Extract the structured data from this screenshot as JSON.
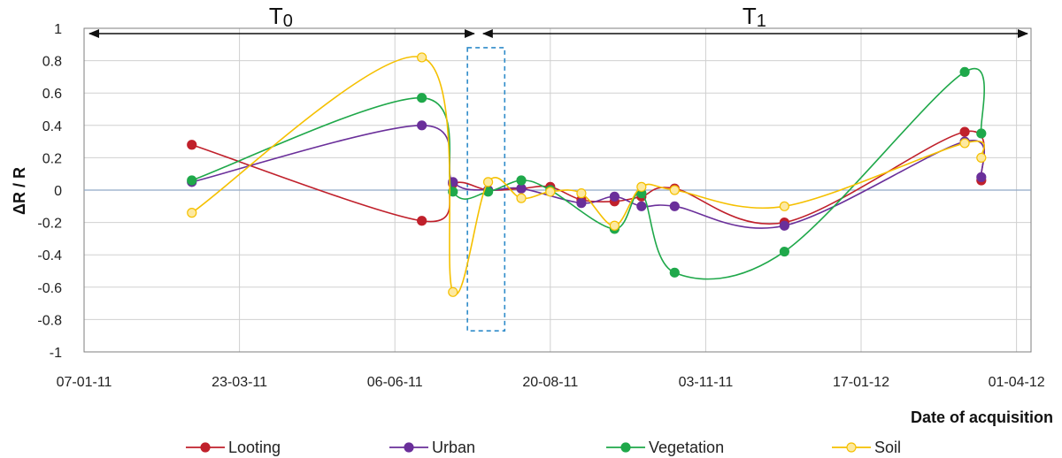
{
  "chart_data": {
    "type": "line",
    "title": "",
    "xlabel": "Date of acquisition",
    "ylabel": "ΔR / R",
    "xlim": [
      0,
      457
    ],
    "ylim": [
      -1,
      1
    ],
    "y_ticks": [
      -1,
      -0.8,
      -0.6,
      -0.4,
      -0.2,
      0,
      0.2,
      0.4,
      0.6,
      0.8,
      1
    ],
    "y_tick_labels": [
      "-1",
      "-0.8",
      "-0.6",
      "-0.4",
      "-0.2",
      "0",
      "0.2",
      "0.4",
      "0.6",
      "0.8",
      "1"
    ],
    "x_ticks": [
      0,
      75,
      150,
      225,
      300,
      375,
      450
    ],
    "x_tick_labels": [
      "07-01-11",
      "23-03-11",
      "06-06-11",
      "20-08-11",
      "03-11-11",
      "17-01-12",
      "01-04-12"
    ],
    "periods": [
      {
        "label": "T",
        "sub": "0",
        "start": 0,
        "end": 190
      },
      {
        "label": "T",
        "sub": "1",
        "start": 190,
        "end": 457
      }
    ],
    "highlight_box": {
      "x_start": 185,
      "x_end": 203,
      "y_start": -0.87,
      "y_end": 0.88
    },
    "series": [
      {
        "name": "Looting",
        "color": "#c0202b",
        "fill": "#c0202b",
        "x": [
          52,
          163,
          178,
          195,
          211,
          225,
          240,
          256,
          269,
          285,
          338,
          425,
          433
        ],
        "y": [
          0.28,
          -0.19,
          0.04,
          0.0,
          0.01,
          0.02,
          -0.06,
          -0.07,
          -0.04,
          0.01,
          -0.2,
          0.36,
          0.06
        ]
      },
      {
        "name": "Urban",
        "color": "#6a2f9a",
        "fill": "#6a2f9a",
        "x": [
          52,
          163,
          178,
          195,
          211,
          240,
          256,
          269,
          285,
          338,
          425,
          433
        ],
        "y": [
          0.05,
          0.4,
          0.05,
          0.0,
          0.01,
          -0.08,
          -0.04,
          -0.1,
          -0.1,
          -0.22,
          0.3,
          0.08
        ]
      },
      {
        "name": "Vegetation",
        "color": "#1fa84a",
        "fill": "#1fa84a",
        "x": [
          52,
          163,
          178,
          195,
          211,
          225,
          256,
          269,
          285,
          338,
          425,
          433
        ],
        "y": [
          0.06,
          0.57,
          -0.01,
          -0.01,
          0.06,
          0.0,
          -0.24,
          -0.02,
          -0.51,
          -0.38,
          0.73,
          0.35
        ]
      },
      {
        "name": "Soil",
        "color": "#f5c000",
        "fill": "#fde9a0",
        "x": [
          52,
          163,
          178,
          195,
          211,
          225,
          240,
          256,
          269,
          285,
          338,
          425,
          433
        ],
        "y": [
          -0.14,
          0.82,
          -0.63,
          0.05,
          -0.05,
          -0.01,
          -0.02,
          -0.22,
          0.02,
          0.0,
          -0.1,
          0.29,
          0.2
        ]
      }
    ]
  }
}
